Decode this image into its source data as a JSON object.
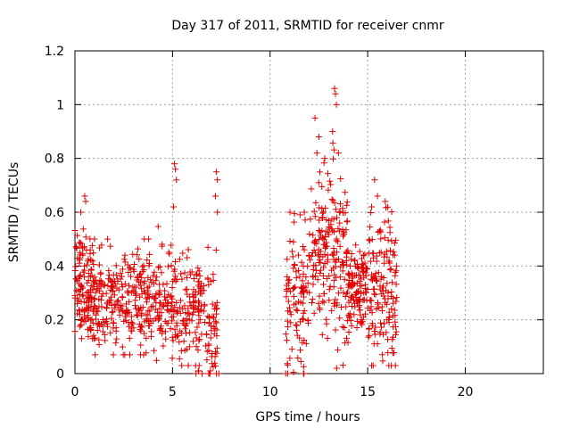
{
  "chart_data": {
    "type": "scatter",
    "title": "Day 317 of 2011, SRMTID for receiver cnmr",
    "xlabel": "GPS time / hours",
    "ylabel": "SRMTID / TECUs",
    "xlim": [
      0,
      24
    ],
    "ylim": [
      0,
      1.2
    ],
    "xticks": [
      0,
      5,
      10,
      15,
      20
    ],
    "xtick_labels": [
      "0",
      "5",
      "10",
      "15",
      "20"
    ],
    "yticks": [
      0,
      0.2,
      0.4,
      0.6,
      0.8,
      1.0,
      1.2
    ],
    "ytick_labels": [
      "0",
      "0.2",
      "0.4",
      "0.6",
      "0.8",
      "1",
      "1.2"
    ],
    "grid": true,
    "series": [
      {
        "name": "SRMTID",
        "color": "#e00000",
        "marker": "plus",
        "clusters": [
          {
            "x_range": [
              0.0,
              1.0
            ],
            "y_mean": 0.32,
            "y_spread": 0.1,
            "y_min": 0.13,
            "y_max": 0.66,
            "count": 140
          },
          {
            "x_range": [
              1.0,
              4.0
            ],
            "y_mean": 0.27,
            "y_spread": 0.09,
            "y_min": 0.07,
            "y_max": 0.5,
            "count": 260
          },
          {
            "x_range": [
              4.0,
              6.5
            ],
            "y_mean": 0.24,
            "y_spread": 0.1,
            "y_min": 0.03,
            "y_max": 0.78,
            "count": 200
          },
          {
            "x_range": [
              6.2,
              7.4
            ],
            "y_mean": 0.17,
            "y_spread": 0.12,
            "y_min": 0.0,
            "y_max": 0.75,
            "count": 80
          },
          {
            "x_range": [
              10.8,
              12.0
            ],
            "y_mean": 0.28,
            "y_spread": 0.14,
            "y_min": 0.0,
            "y_max": 0.6,
            "count": 100
          },
          {
            "x_range": [
              12.0,
              14.0
            ],
            "y_mean": 0.45,
            "y_spread": 0.16,
            "y_min": 0.02,
            "y_max": 1.06,
            "count": 200
          },
          {
            "x_range": [
              14.0,
              15.0
            ],
            "y_mean": 0.3,
            "y_spread": 0.08,
            "y_min": 0.14,
            "y_max": 0.5,
            "count": 120
          },
          {
            "x_range": [
              15.0,
              16.5
            ],
            "y_mean": 0.3,
            "y_spread": 0.14,
            "y_min": 0.03,
            "y_max": 0.72,
            "count": 150
          }
        ],
        "highlights": [
          {
            "x": 0.3,
            "y": 0.6
          },
          {
            "x": 0.5,
            "y": 0.66
          },
          {
            "x": 0.55,
            "y": 0.64
          },
          {
            "x": 5.1,
            "y": 0.78
          },
          {
            "x": 5.15,
            "y": 0.76
          },
          {
            "x": 5.2,
            "y": 0.72
          },
          {
            "x": 5.05,
            "y": 0.62
          },
          {
            "x": 7.25,
            "y": 0.75
          },
          {
            "x": 7.3,
            "y": 0.72
          },
          {
            "x": 7.2,
            "y": 0.66
          },
          {
            "x": 7.3,
            "y": 0.6
          },
          {
            "x": 12.3,
            "y": 0.95
          },
          {
            "x": 12.5,
            "y": 0.88
          },
          {
            "x": 12.4,
            "y": 0.82
          },
          {
            "x": 13.3,
            "y": 1.06
          },
          {
            "x": 13.35,
            "y": 1.04
          },
          {
            "x": 13.4,
            "y": 1.0
          },
          {
            "x": 13.2,
            "y": 0.9
          },
          {
            "x": 13.5,
            "y": 0.82
          },
          {
            "x": 12.8,
            "y": 0.8
          },
          {
            "x": 15.35,
            "y": 0.72
          },
          {
            "x": 15.5,
            "y": 0.66
          },
          {
            "x": 15.2,
            "y": 0.62
          },
          {
            "x": 15.9,
            "y": 0.64
          },
          {
            "x": 10.8,
            "y": 0.0
          },
          {
            "x": 10.9,
            "y": 0.0
          }
        ]
      }
    ]
  }
}
